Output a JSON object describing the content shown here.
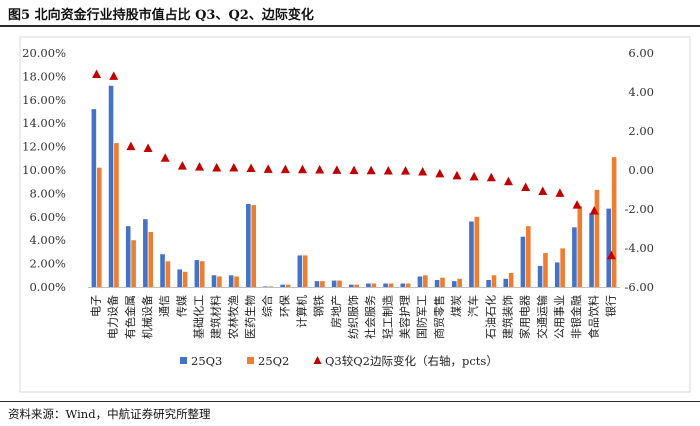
{
  "figure": {
    "title": "图5  北向资金行业持股市值占比 Q3、Q2、边际变化",
    "source": "资料来源：Wind，中航证券研究所整理"
  },
  "colors": {
    "q3": "#4472C4",
    "q2": "#ED7D31",
    "change": "#C00000"
  },
  "chart_data": {
    "type": "bar",
    "categories": [
      "电子",
      "电力设备",
      "有色金属",
      "机械设备",
      "通信",
      "传媒",
      "基础化工",
      "建筑材料",
      "农林牧渔",
      "医药生物",
      "综合",
      "环保",
      "计算机",
      "钢铁",
      "房地产",
      "纺织服饰",
      "社会服务",
      "轻工制造",
      "美容护理",
      "国防军工",
      "商贸零售",
      "煤炭",
      "汽车",
      "石油石化",
      "建筑装饰",
      "家用电器",
      "交通运输",
      "公用事业",
      "非银金融",
      "食品饮料",
      "银行"
    ],
    "series": [
      {
        "name": "25Q3",
        "type": "bar",
        "axis": "left",
        "values": [
          15.2,
          17.2,
          5.2,
          5.8,
          2.8,
          1.5,
          2.3,
          1.0,
          1.0,
          7.1,
          0.05,
          0.2,
          2.7,
          0.5,
          0.55,
          0.2,
          0.3,
          0.3,
          0.3,
          0.9,
          0.6,
          0.5,
          5.6,
          0.6,
          0.7,
          4.3,
          1.8,
          2.1,
          5.1,
          6.3,
          6.7
        ]
      },
      {
        "name": "25Q2",
        "type": "bar",
        "axis": "left",
        "values": [
          10.2,
          12.3,
          4.0,
          4.7,
          2.2,
          1.3,
          2.2,
          0.9,
          0.9,
          7.0,
          0.05,
          0.2,
          2.7,
          0.5,
          0.55,
          0.2,
          0.3,
          0.3,
          0.3,
          1.0,
          0.8,
          0.7,
          6.0,
          1.0,
          1.2,
          5.2,
          2.9,
          3.3,
          6.9,
          8.3,
          11.1
        ]
      },
      {
        "name": "Q3较Q2边际变化（右轴，pcts）",
        "type": "scatter",
        "axis": "right",
        "values": [
          4.9,
          4.8,
          1.2,
          1.1,
          0.6,
          0.2,
          0.15,
          0.1,
          0.1,
          0.08,
          0.03,
          0.02,
          0.01,
          0.0,
          -0.02,
          -0.03,
          -0.04,
          -0.05,
          -0.06,
          -0.1,
          -0.2,
          -0.3,
          -0.35,
          -0.4,
          -0.6,
          -0.9,
          -1.1,
          -1.2,
          -1.8,
          -2.1,
          -4.4
        ]
      }
    ],
    "yaxis_left": {
      "min": 0,
      "max": 20,
      "step": 2,
      "tick_labels": [
        "0.00%",
        "2.00%",
        "4.00%",
        "6.00%",
        "8.00%",
        "10.00%",
        "12.00%",
        "14.00%",
        "16.00%",
        "18.00%",
        "20.00%"
      ]
    },
    "yaxis_right": {
      "min": -6,
      "max": 6,
      "step": 2,
      "tick_labels": [
        "-6.00",
        "-4.00",
        "-2.00",
        "0.00",
        "2.00",
        "4.00",
        "6.00"
      ]
    },
    "grid": false,
    "legend_position": "bottom"
  }
}
